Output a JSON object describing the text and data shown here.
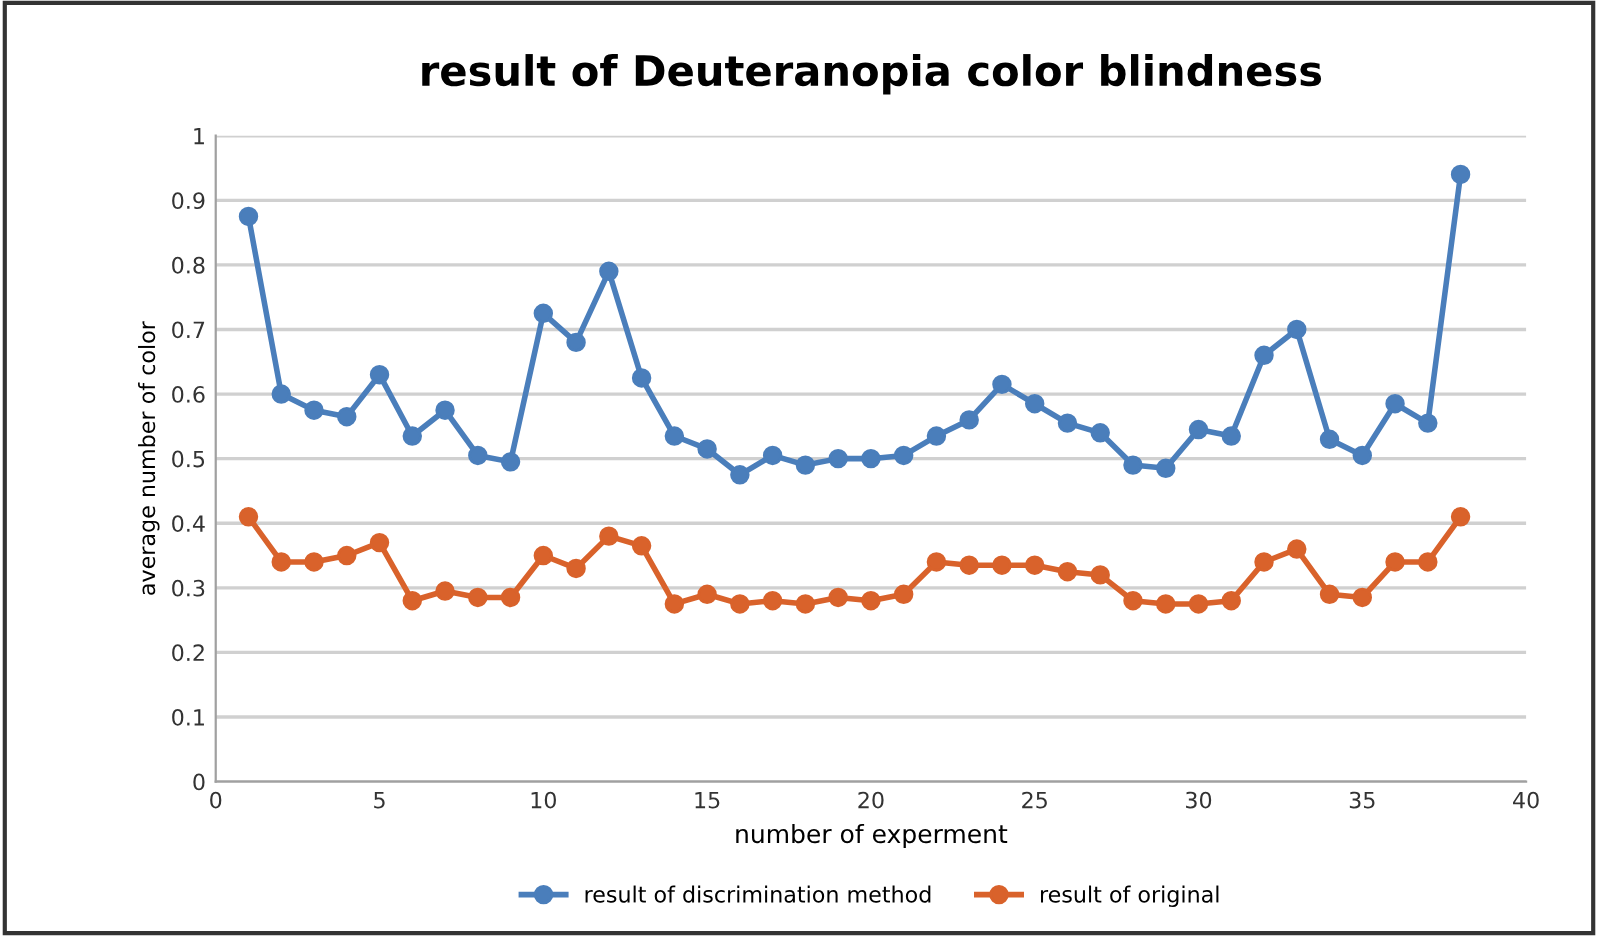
{
  "chart_data": {
    "type": "line",
    "title": "result of Deuteranopia color blindness",
    "xlabel": "number of experment",
    "ylabel": "average number of color",
    "x": [
      1,
      2,
      3,
      4,
      5,
      6,
      7,
      8,
      9,
      10,
      11,
      12,
      13,
      14,
      15,
      16,
      17,
      18,
      19,
      20,
      21,
      22,
      23,
      24,
      25,
      26,
      27,
      28,
      29,
      30,
      31,
      32,
      33,
      34,
      35,
      36,
      37,
      38
    ],
    "series": [
      {
        "name": "result of discrimination method",
        "color": "#4a7ebb",
        "values": [
          0.875,
          0.6,
          0.575,
          0.565,
          0.63,
          0.535,
          0.575,
          0.505,
          0.495,
          0.725,
          0.68,
          0.79,
          0.625,
          0.535,
          0.515,
          0.475,
          0.505,
          0.49,
          0.5,
          0.5,
          0.505,
          0.535,
          0.56,
          0.615,
          0.585,
          0.555,
          0.54,
          0.49,
          0.485,
          0.545,
          0.535,
          0.66,
          0.7,
          0.53,
          0.505,
          0.585,
          0.555,
          0.94
        ]
      },
      {
        "name": "result of original",
        "color": "#d9622b",
        "values": [
          0.41,
          0.34,
          0.34,
          0.35,
          0.37,
          0.28,
          0.295,
          0.285,
          0.285,
          0.35,
          0.33,
          0.38,
          0.365,
          0.275,
          0.29,
          0.275,
          0.28,
          0.275,
          0.285,
          0.28,
          0.29,
          0.34,
          0.335,
          0.335,
          0.335,
          0.325,
          0.32,
          0.28,
          0.275,
          0.275,
          0.28,
          0.34,
          0.36,
          0.29,
          0.285,
          0.34,
          0.34,
          0.41
        ]
      }
    ],
    "xlim": [
      0,
      40
    ],
    "xticks": [
      0,
      5,
      10,
      15,
      20,
      25,
      30,
      35,
      40
    ],
    "ylim": [
      0,
      1
    ],
    "yticks": [
      0,
      0.1,
      0.2,
      0.3,
      0.4,
      0.5,
      0.6,
      0.7,
      0.8,
      0.9,
      1
    ],
    "grid": "y",
    "legend": "bottom",
    "marker": "circle",
    "line_style": "solid"
  }
}
